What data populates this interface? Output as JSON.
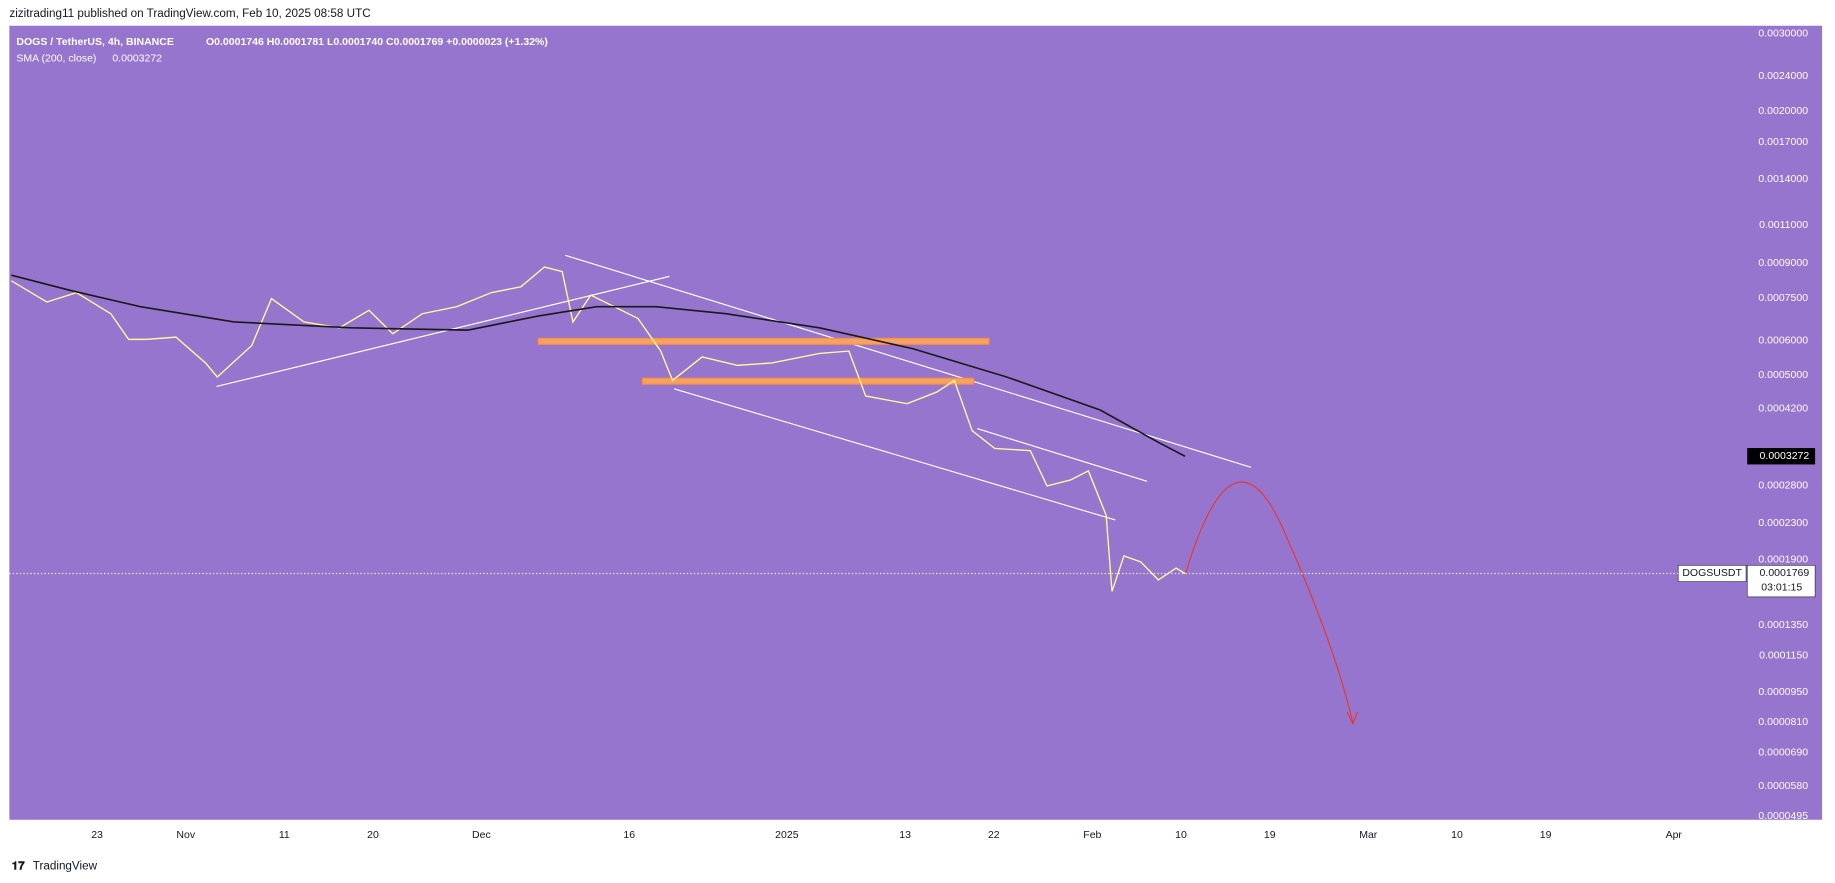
{
  "chart_data": {
    "type": "line",
    "header": "zizitrading11 published on TradingView.com, Feb 10, 2025 08:58 UTC",
    "legend_title": "DOGS / TetherUS, 4h, BINANCE",
    "ohlc": "O0.0001746 H0.0001781 L0.0001740 C0.0001769 +0.0000023 (+1.32%)",
    "countdown": "03:01:15",
    "footer": "TradingView",
    "log_scale": true,
    "grid": false,
    "xlim": [
      -8.9,
      167.1
    ],
    "xticks": [
      {
        "value": 0,
        "label": "23"
      },
      {
        "value": 9,
        "label": "Nov"
      },
      {
        "value": 19,
        "label": "11"
      },
      {
        "value": 28,
        "label": "20"
      },
      {
        "value": 39,
        "label": "Dec"
      },
      {
        "value": 54,
        "label": "16"
      },
      {
        "value": 70,
        "label": "2025"
      },
      {
        "value": 82,
        "label": "13"
      },
      {
        "value": 91,
        "label": "22"
      },
      {
        "value": 101,
        "label": "Feb"
      },
      {
        "value": 110,
        "label": "10"
      },
      {
        "value": 119,
        "label": "19"
      },
      {
        "value": 129,
        "label": "Mar"
      },
      {
        "value": 138,
        "label": "10"
      },
      {
        "value": 147,
        "label": "19"
      },
      {
        "value": 160,
        "label": "Apr"
      }
    ],
    "ylim": [
      4.86e-05,
      0.00313
    ],
    "yticks": [
      {
        "value": 0.003,
        "label": "0.0030000"
      },
      {
        "value": 0.0024,
        "label": "0.0024000"
      },
      {
        "value": 0.002,
        "label": "0.0020000"
      },
      {
        "value": 0.0017,
        "label": "0.0017000"
      },
      {
        "value": 0.0014,
        "label": "0.0014000"
      },
      {
        "value": 0.0011,
        "label": "0.0011000"
      },
      {
        "value": 0.0009,
        "label": "0.0009000"
      },
      {
        "value": 0.00075,
        "label": "0.0007500"
      },
      {
        "value": 0.0006,
        "label": "0.0006000"
      },
      {
        "value": 0.0005,
        "label": "0.0005000"
      },
      {
        "value": 0.00042,
        "label": "0.0004200"
      },
      {
        "value": 0.00028,
        "label": "0.0002800"
      },
      {
        "value": 0.00023,
        "label": "0.0002300"
      },
      {
        "value": 0.00019,
        "label": "0.0001900"
      },
      {
        "value": 0.000135,
        "label": "0.0001350"
      },
      {
        "value": 0.000115,
        "label": "0.0001150"
      },
      {
        "value": 9.5e-05,
        "label": "0.0000950"
      },
      {
        "value": 8.1e-05,
        "label": "0.0000810"
      },
      {
        "value": 6.9e-05,
        "label": "0.0000690"
      },
      {
        "value": 5.8e-05,
        "label": "0.0000580"
      },
      {
        "value": 4.95e-05,
        "label": "0.0000495"
      }
    ],
    "last_price": {
      "value": 0.0001769,
      "label": "0.0001769"
    },
    "sma_last": {
      "value": 0.0003272,
      "label": "0.0003272"
    },
    "series": [
      {
        "name": "DOGSUSDT",
        "color": "#fff59d",
        "x": [
          -8.7,
          -5.1,
          -2.1,
          1.4,
          3.2,
          5,
          8,
          11,
          12.2,
          15.7,
          17.7,
          21,
          24.6,
          27.6,
          30,
          33,
          36.5,
          40,
          43,
          45.4,
          47.2,
          48.3,
          50.1,
          52.5,
          54.9,
          57.2,
          58.4,
          61.4,
          65,
          68.5,
          73.3,
          76.3,
          78,
          82.2,
          85.2,
          87,
          88.8,
          91.1,
          94.7,
          96.4,
          98.8,
          100.6,
          102.4,
          103,
          104.2,
          105.9,
          107.7,
          109.5,
          110.4
        ],
        "values": [
          0.000821,
          0.000735,
          0.000772,
          0.000691,
          0.000604,
          0.000604,
          0.000611,
          0.000534,
          0.000496,
          0.000585,
          0.000748,
          0.000662,
          0.000642,
          0.000704,
          0.000622,
          0.000691,
          0.000717,
          0.000772,
          0.000796,
          0.000883,
          0.000862,
          0.000662,
          0.000762,
          0.000717,
          0.000674,
          0.000568,
          0.000487,
          0.000551,
          0.000527,
          0.000534,
          0.000561,
          0.000568,
          0.000449,
          0.000431,
          0.000458,
          0.000487,
          0.000374,
          0.000341,
          0.000337,
          0.00028,
          0.000289,
          0.000303,
          0.00024,
          0.000161,
          0.000194,
          0.000188,
          0.000171,
          0.000182,
          0.0001769
        ]
      },
      {
        "name": "SMA (200, close)",
        "color": "#1a1a1a",
        "x": [
          -8.7,
          -2.7,
          4.4,
          13.9,
          25.8,
          37.6,
          44.8,
          50.7,
          56.7,
          63.8,
          73.3,
          82.8,
          92.3,
          101.8,
          107.7,
          110.4
        ],
        "values": [
          0.000846,
          0.000781,
          0.000717,
          0.000662,
          0.000642,
          0.000634,
          0.000683,
          0.000717,
          0.000717,
          0.000691,
          0.000642,
          0.000575,
          0.000496,
          0.000417,
          0.000352,
          0.0003272
        ]
      }
    ]
  }
}
